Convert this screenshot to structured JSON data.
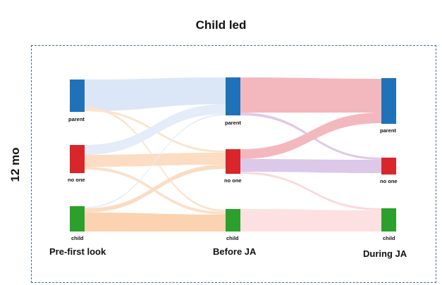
{
  "title": "Child led",
  "side_label": "12 mo",
  "stages": [
    "Pre-first look",
    "Before JA",
    "During JA"
  ],
  "categories": [
    "parent",
    "no one",
    "child"
  ],
  "colors": {
    "parent": "#1f72b8",
    "no one": "#d9262b",
    "child": "#2ca02c",
    "frame": "#3b6e9e"
  },
  "flows_stage1_to_stage2": [
    {
      "from": "parent",
      "to": "parent",
      "band": "wide"
    },
    {
      "from": "parent",
      "to": "no one",
      "band": "thin"
    },
    {
      "from": "parent",
      "to": "child",
      "band": "thin"
    },
    {
      "from": "no one",
      "to": "parent",
      "band": "medium"
    },
    {
      "from": "no one",
      "to": "no one",
      "band": "medium"
    },
    {
      "from": "no one",
      "to": "child",
      "band": "thin"
    },
    {
      "from": "child",
      "to": "parent",
      "band": "thin"
    },
    {
      "from": "child",
      "to": "no one",
      "band": "thin"
    },
    {
      "from": "child",
      "to": "child",
      "band": "wide"
    }
  ],
  "flows_stage2_to_stage3": [
    {
      "from": "parent",
      "to": "parent",
      "band": "wide"
    },
    {
      "from": "parent",
      "to": "no one",
      "band": "thin"
    },
    {
      "from": "no one",
      "to": "parent",
      "band": "medium"
    },
    {
      "from": "no one",
      "to": "no one",
      "band": "medium"
    },
    {
      "from": "no one",
      "to": "child",
      "band": "thin"
    },
    {
      "from": "child",
      "to": "child",
      "band": "wide"
    }
  ]
}
